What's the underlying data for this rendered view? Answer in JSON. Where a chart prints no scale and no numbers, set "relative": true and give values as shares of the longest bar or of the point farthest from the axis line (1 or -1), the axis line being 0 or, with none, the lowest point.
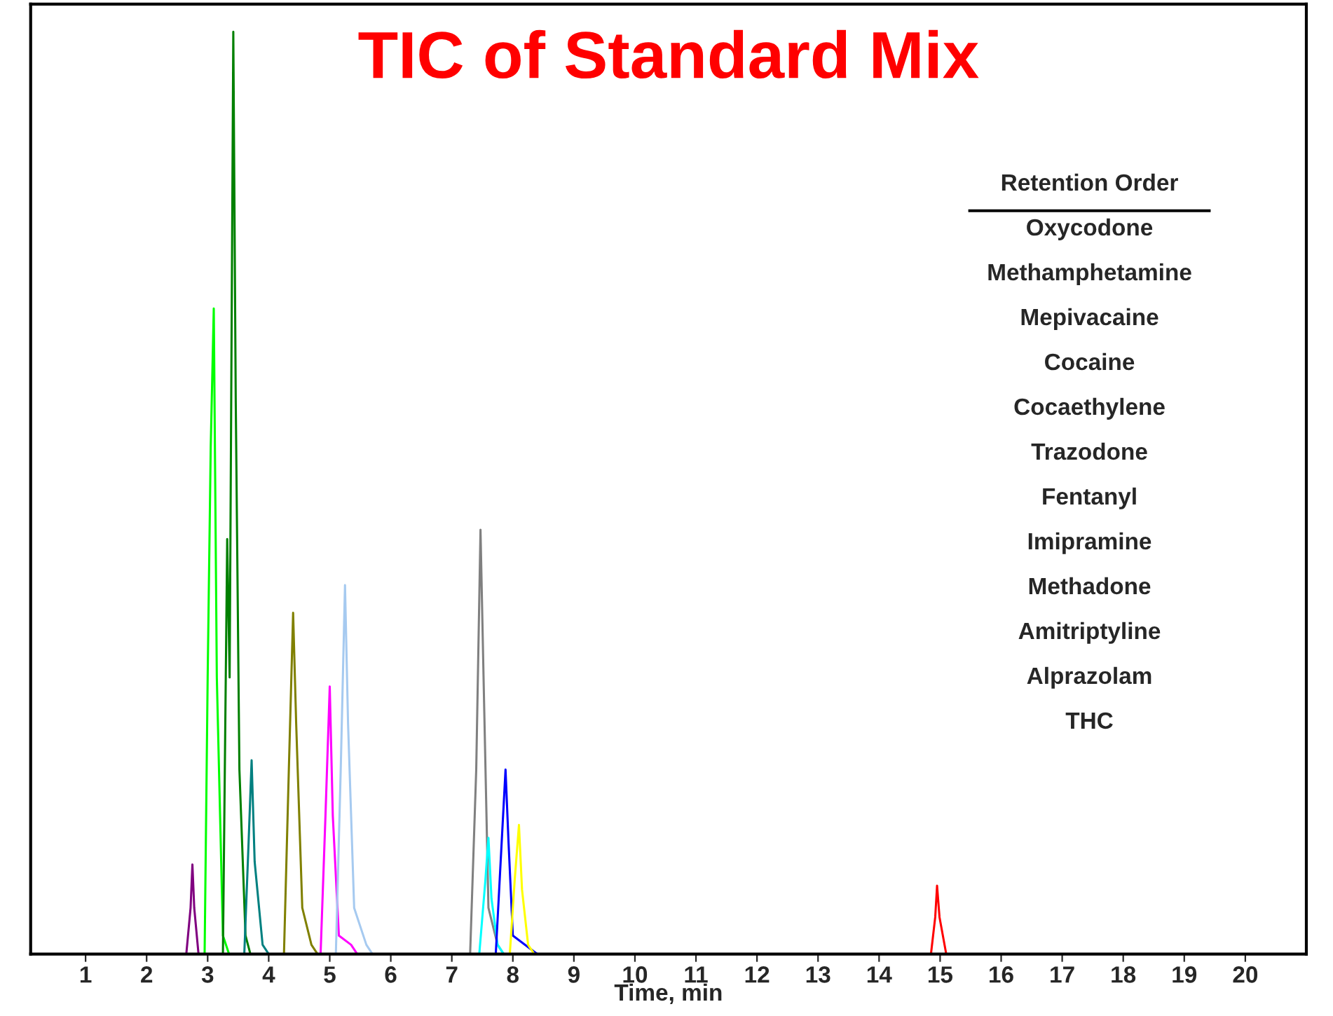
{
  "chart_data": {
    "type": "line",
    "title": "TIC of Standard Mix",
    "xlabel": "Time, min",
    "relative": true,
    "tick_labels": "x",
    "grid": false,
    "marker": "none",
    "line_style": "solid",
    "xlim": [
      0.1,
      21
    ],
    "xticks": [
      1,
      2,
      3,
      4,
      5,
      6,
      7,
      8,
      9,
      10,
      11,
      12,
      13,
      14,
      15,
      16,
      17,
      18,
      19,
      20
    ],
    "annotations": [
      "Retention Order",
      "Oxycodone",
      "Methamphetamine",
      "Mepivacaine",
      "Cocaine",
      "Cocaethylene",
      "Trazodone",
      "Fentanyl",
      "Imipramine",
      "Methadone",
      "Amitriptyline",
      "Alprazolam",
      "THC"
    ],
    "series": [
      {
        "color": "#800080",
        "x": [
          2.65,
          2.72,
          2.75,
          2.78,
          2.85
        ],
        "values": [
          0,
          0.05,
          0.097,
          0.05,
          0
        ]
      },
      {
        "color": "#00ff00",
        "x": [
          2.95,
          3.0,
          3.05,
          3.1,
          3.15,
          3.25,
          3.35
        ],
        "values": [
          0,
          0.3,
          0.55,
          0.7,
          0.3,
          0.02,
          0
        ]
      },
      {
        "color": "#008000",
        "x": [
          3.25,
          3.32,
          3.36,
          3.42,
          3.46,
          3.52,
          3.62,
          3.7
        ],
        "values": [
          0,
          0.45,
          0.3,
          1.0,
          0.6,
          0.2,
          0.02,
          0
        ]
      },
      {
        "color": "#008080",
        "x": [
          3.6,
          3.67,
          3.72,
          3.77,
          3.9,
          4.0
        ],
        "values": [
          0,
          0.12,
          0.21,
          0.1,
          0.01,
          0
        ]
      },
      {
        "color": "#808000",
        "x": [
          4.25,
          4.33,
          4.4,
          4.45,
          4.55,
          4.7,
          4.8
        ],
        "values": [
          0,
          0.2,
          0.37,
          0.25,
          0.05,
          0.01,
          0
        ]
      },
      {
        "color": "#ff00ff",
        "x": [
          4.85,
          4.93,
          5.0,
          5.05,
          5.15,
          5.35,
          5.45
        ],
        "values": [
          0,
          0.15,
          0.29,
          0.15,
          0.02,
          0.01,
          0
        ]
      },
      {
        "color": "#a6caf0",
        "x": [
          5.1,
          5.18,
          5.25,
          5.3,
          5.4,
          5.6,
          5.7
        ],
        "values": [
          0,
          0.2,
          0.4,
          0.25,
          0.05,
          0.01,
          0
        ]
      },
      {
        "color": "#808080",
        "x": [
          7.3,
          7.4,
          7.47,
          7.52,
          7.6,
          7.75,
          7.85
        ],
        "values": [
          0,
          0.2,
          0.46,
          0.3,
          0.05,
          0.01,
          0
        ]
      },
      {
        "color": "#00ffff",
        "x": [
          7.45,
          7.55,
          7.6,
          7.65,
          7.75,
          7.85
        ],
        "values": [
          0,
          0.08,
          0.126,
          0.06,
          0.01,
          0
        ]
      },
      {
        "color": "#0000ff",
        "x": [
          7.72,
          7.8,
          7.88,
          7.93,
          8.0,
          8.3,
          8.4
        ],
        "values": [
          0,
          0.1,
          0.2,
          0.12,
          0.02,
          0.005,
          0
        ]
      },
      {
        "color": "#ffff00",
        "x": [
          7.95,
          8.03,
          8.1,
          8.15,
          8.25,
          8.35
        ],
        "values": [
          0,
          0.08,
          0.14,
          0.07,
          0.01,
          0
        ]
      },
      {
        "color": "#ff0000",
        "x": [
          14.85,
          14.92,
          14.95,
          14.99,
          15.1
        ],
        "values": [
          0,
          0.04,
          0.074,
          0.04,
          0
        ]
      }
    ]
  }
}
